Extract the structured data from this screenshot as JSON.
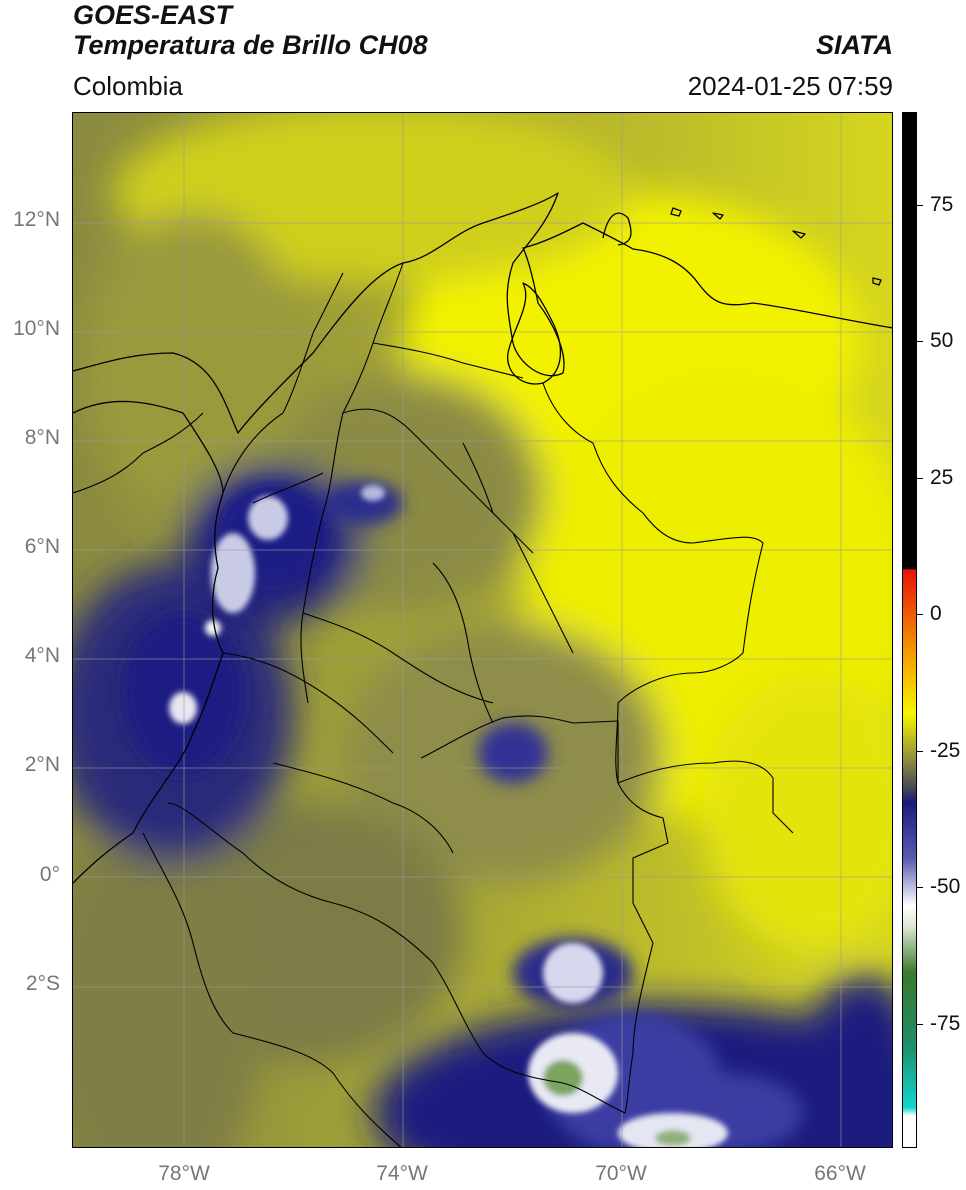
{
  "header": {
    "satellite": "GOES-EAST",
    "product": "Temperatura de Brillo CH08",
    "brand": "SIATA",
    "region": "Colombia",
    "timestamp": "2024-01-25 07:59"
  },
  "map": {
    "lat_ticks": [
      "12°N",
      "10°N",
      "8°N",
      "6°N",
      "4°N",
      "2°N",
      "0°",
      "2°S"
    ],
    "lon_ticks": [
      "78°W",
      "74°W",
      "70°W",
      "66°W"
    ],
    "grid": true
  },
  "colorbar": {
    "ticks": [
      "75",
      "50",
      "25",
      "0",
      "-25",
      "-50",
      "-75"
    ],
    "colors": {
      "warm": "#000000",
      "hot": "#e8120a",
      "orange": "#f39a00",
      "yellow": "#f6f600",
      "olive": "#6e6e43",
      "navy": "#1b1b7e",
      "white": "#ffffff",
      "green": "#3a7a2a",
      "cyan": "#13d6d0"
    }
  }
}
